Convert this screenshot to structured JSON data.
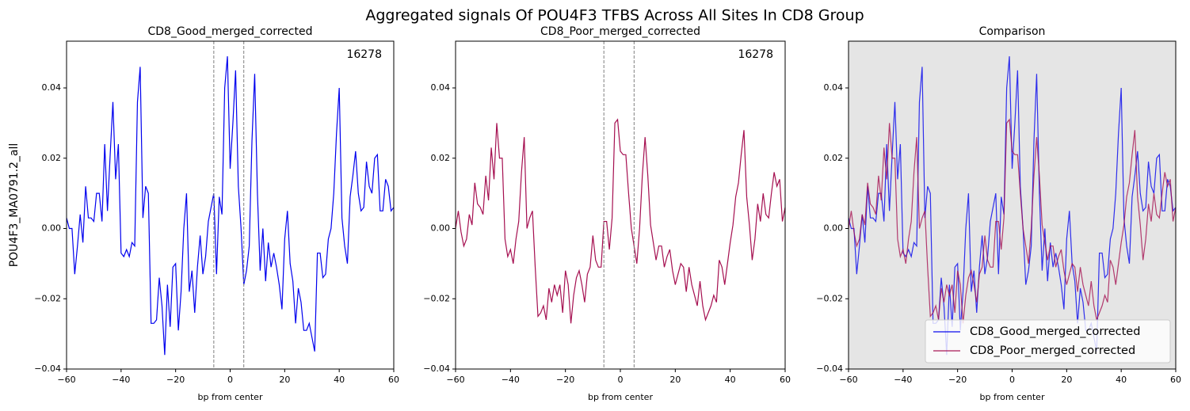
{
  "title": "Aggregated signals Of POU4F3 TFBS Across All Sites In CD8 Group",
  "chart_data": [
    {
      "type": "line",
      "title": "CD8_Good_merged_corrected",
      "xlabel": "bp from center",
      "ylabel": "POU4F3_MA0791.2_all",
      "annotation": "16278",
      "background": "#ffffff",
      "vlines": [
        -6,
        5
      ],
      "xlim": [
        -60,
        60
      ],
      "xticks": [
        {
          "value": -60,
          "label": "−60"
        },
        {
          "value": -40,
          "label": "−40"
        },
        {
          "value": -20,
          "label": "−20"
        },
        0,
        20,
        40,
        60
      ],
      "ylim": [
        -0.04,
        0.0533
      ],
      "yticks": [
        {
          "value": -0.04,
          "label": "−0.04"
        },
        {
          "value": -0.02,
          "label": "−0.02"
        },
        {
          "value": 0,
          "label": "0.00"
        },
        {
          "value": 0.02,
          "label": "0.02"
        },
        {
          "value": 0.04,
          "label": "0.04"
        }
      ],
      "x": [
        -60,
        -59,
        -58,
        -57,
        -56,
        -55,
        -54,
        -53,
        -52,
        -51,
        -50,
        -49,
        -48,
        -47,
        -46,
        -45,
        -44,
        -43,
        -42,
        -41,
        -40,
        -39,
        -38,
        -37,
        -36,
        -35,
        -34,
        -33,
        -32,
        -31,
        -30,
        -29,
        -28,
        -27,
        -26,
        -25,
        -24,
        -23,
        -22,
        -21,
        -20,
        -19,
        -18,
        -17,
        -16,
        -15,
        -14,
        -13,
        -12,
        -11,
        -10,
        -9,
        -8,
        -7,
        -6,
        -5,
        -4,
        -3,
        -2,
        -1,
        0,
        1,
        2,
        3,
        4,
        5,
        6,
        7,
        8,
        9,
        10,
        11,
        12,
        13,
        14,
        15,
        16,
        17,
        18,
        19,
        20,
        21,
        22,
        23,
        24,
        25,
        26,
        27,
        28,
        29,
        30,
        31,
        32,
        33,
        34,
        35,
        36,
        37,
        38,
        39,
        40,
        41,
        42,
        43,
        44,
        45,
        46,
        47,
        48,
        49,
        50,
        51,
        52,
        53,
        54,
        55,
        56,
        57,
        58,
        59,
        60
      ],
      "series": [
        {
          "color": "#0000ee",
          "opacity": 1,
          "values": [
            0.003,
            0.0,
            0.0,
            -0.013,
            -0.005,
            0.004,
            -0.004,
            0.012,
            0.003,
            0.003,
            0.002,
            0.01,
            0.01,
            0.002,
            0.024,
            0.005,
            0.021,
            0.036,
            0.014,
            0.024,
            -0.007,
            -0.008,
            -0.006,
            -0.008,
            -0.004,
            -0.005,
            0.036,
            0.046,
            0.003,
            0.012,
            0.01,
            -0.027,
            -0.027,
            -0.026,
            -0.014,
            -0.022,
            -0.036,
            -0.016,
            -0.028,
            -0.011,
            -0.01,
            -0.029,
            -0.018,
            0.0,
            0.01,
            -0.018,
            -0.012,
            -0.024,
            -0.011,
            -0.002,
            -0.013,
            -0.008,
            0.002,
            0.006,
            0.01,
            -0.013,
            0.009,
            0.004,
            0.04,
            0.049,
            0.017,
            0.03,
            0.045,
            0.012,
            0.0,
            -0.016,
            -0.012,
            -0.005,
            0.025,
            0.044,
            0.01,
            -0.012,
            0.0,
            -0.015,
            -0.004,
            -0.011,
            -0.007,
            -0.011,
            -0.016,
            -0.023,
            -0.003,
            0.005,
            -0.01,
            -0.015,
            -0.027,
            -0.017,
            -0.021,
            -0.029,
            -0.029,
            -0.027,
            -0.031,
            -0.035,
            -0.007,
            -0.007,
            -0.014,
            -0.013,
            -0.003,
            0.0,
            0.01,
            0.027,
            0.04,
            0.003,
            -0.005,
            -0.01,
            0.009,
            0.015,
            0.022,
            0.01,
            0.005,
            0.006,
            0.019,
            0.012,
            0.01,
            0.02,
            0.021,
            0.005,
            0.005,
            0.014,
            0.012,
            0.005,
            0.006
          ]
        }
      ]
    },
    {
      "type": "line",
      "title": "CD8_Poor_merged_corrected",
      "xlabel": "bp from center",
      "annotation": "16278",
      "background": "#ffffff",
      "vlines": [
        -6,
        5
      ],
      "xlim": [
        -60,
        60
      ],
      "xticks": [
        {
          "value": -60,
          "label": "−60"
        },
        {
          "value": -40,
          "label": "−40"
        },
        {
          "value": -20,
          "label": "−20"
        },
        0,
        20,
        40,
        60
      ],
      "ylim": [
        -0.04,
        0.0533
      ],
      "yticks": [
        {
          "value": -0.04,
          "label": "−0.04"
        },
        {
          "value": -0.02,
          "label": "−0.02"
        },
        {
          "value": 0,
          "label": "0.00"
        },
        {
          "value": 0.02,
          "label": "0.02"
        },
        {
          "value": 0.04,
          "label": "0.04"
        }
      ],
      "x": [
        -60,
        -59,
        -58,
        -57,
        -56,
        -55,
        -54,
        -53,
        -52,
        -51,
        -50,
        -49,
        -48,
        -47,
        -46,
        -45,
        -44,
        -43,
        -42,
        -41,
        -40,
        -39,
        -38,
        -37,
        -36,
        -35,
        -34,
        -33,
        -32,
        -31,
        -30,
        -29,
        -28,
        -27,
        -26,
        -25,
        -24,
        -23,
        -22,
        -21,
        -20,
        -19,
        -18,
        -17,
        -16,
        -15,
        -14,
        -13,
        -12,
        -11,
        -10,
        -9,
        -8,
        -7,
        -6,
        -5,
        -4,
        -3,
        -2,
        -1,
        0,
        1,
        2,
        3,
        4,
        5,
        6,
        7,
        8,
        9,
        10,
        11,
        12,
        13,
        14,
        15,
        16,
        17,
        18,
        19,
        20,
        21,
        22,
        23,
        24,
        25,
        26,
        27,
        28,
        29,
        30,
        31,
        32,
        33,
        34,
        35,
        36,
        37,
        38,
        39,
        40,
        41,
        42,
        43,
        44,
        45,
        46,
        47,
        48,
        49,
        50,
        51,
        52,
        53,
        54,
        55,
        56,
        57,
        58,
        59,
        60
      ],
      "series": [
        {
          "color": "#a50f50",
          "opacity": 1,
          "values": [
            0.0,
            0.005,
            -0.001,
            -0.005,
            -0.003,
            0.004,
            0.001,
            0.013,
            0.007,
            0.006,
            0.004,
            0.015,
            0.008,
            0.023,
            0.014,
            0.03,
            0.02,
            0.02,
            -0.003,
            -0.008,
            -0.006,
            -0.01,
            -0.003,
            0.002,
            0.016,
            0.026,
            0.0,
            0.003,
            0.005,
            -0.011,
            -0.025,
            -0.024,
            -0.022,
            -0.026,
            -0.017,
            -0.021,
            -0.016,
            -0.019,
            -0.016,
            -0.024,
            -0.012,
            -0.016,
            -0.027,
            -0.019,
            -0.014,
            -0.012,
            -0.016,
            -0.021,
            -0.013,
            -0.011,
            -0.002,
            -0.009,
            -0.011,
            -0.011,
            0.002,
            0.002,
            -0.006,
            0.003,
            0.03,
            0.031,
            0.022,
            0.021,
            0.021,
            0.01,
            0.0,
            -0.005,
            -0.01,
            0.0,
            0.015,
            0.026,
            0.015,
            0.001,
            -0.004,
            -0.009,
            -0.005,
            -0.005,
            -0.011,
            -0.008,
            -0.006,
            -0.012,
            -0.016,
            -0.013,
            -0.01,
            -0.011,
            -0.018,
            -0.011,
            -0.016,
            -0.019,
            -0.022,
            -0.015,
            -0.022,
            -0.026,
            -0.024,
            -0.022,
            -0.019,
            -0.021,
            -0.009,
            -0.011,
            -0.016,
            -0.01,
            -0.004,
            0.001,
            0.009,
            0.013,
            0.021,
            0.028,
            0.009,
            0.001,
            -0.009,
            -0.003,
            0.007,
            0.002,
            0.01,
            0.004,
            0.003,
            0.01,
            0.016,
            0.012,
            0.014,
            0.002,
            0.006
          ]
        }
      ]
    },
    {
      "type": "line",
      "title": "Comparison",
      "xlabel": "bp from center",
      "background": "#e5e5e5",
      "legend": "lower right",
      "xlim": [
        -60,
        60
      ],
      "xticks": [
        {
          "value": -60,
          "label": "−60"
        },
        {
          "value": -40,
          "label": "−40"
        },
        {
          "value": -20,
          "label": "−20"
        },
        0,
        20,
        40,
        60
      ],
      "ylim": [
        -0.04,
        0.0533
      ],
      "yticks": [
        {
          "value": -0.04,
          "label": "−0.04"
        },
        {
          "value": -0.02,
          "label": "−0.02"
        },
        {
          "value": 0,
          "label": "0.00"
        },
        {
          "value": 0.02,
          "label": "0.02"
        },
        {
          "value": 0.04,
          "label": "0.04"
        }
      ],
      "x": [
        -60,
        -59,
        -58,
        -57,
        -56,
        -55,
        -54,
        -53,
        -52,
        -51,
        -50,
        -49,
        -48,
        -47,
        -46,
        -45,
        -44,
        -43,
        -42,
        -41,
        -40,
        -39,
        -38,
        -37,
        -36,
        -35,
        -34,
        -33,
        -32,
        -31,
        -30,
        -29,
        -28,
        -27,
        -26,
        -25,
        -24,
        -23,
        -22,
        -21,
        -20,
        -19,
        -18,
        -17,
        -16,
        -15,
        -14,
        -13,
        -12,
        -11,
        -10,
        -9,
        -8,
        -7,
        -6,
        -5,
        -4,
        -3,
        -2,
        -1,
        0,
        1,
        2,
        3,
        4,
        5,
        6,
        7,
        8,
        9,
        10,
        11,
        12,
        13,
        14,
        15,
        16,
        17,
        18,
        19,
        20,
        21,
        22,
        23,
        24,
        25,
        26,
        27,
        28,
        29,
        30,
        31,
        32,
        33,
        34,
        35,
        36,
        37,
        38,
        39,
        40,
        41,
        42,
        43,
        44,
        45,
        46,
        47,
        48,
        49,
        50,
        51,
        52,
        53,
        54,
        55,
        56,
        57,
        58,
        59,
        60
      ],
      "series": [
        {
          "name": "CD8_Good_merged_corrected",
          "color": "#0000ee",
          "opacity": 0.8,
          "values": [
            0.003,
            0.0,
            0.0,
            -0.013,
            -0.005,
            0.004,
            -0.004,
            0.012,
            0.003,
            0.003,
            0.002,
            0.01,
            0.01,
            0.002,
            0.024,
            0.005,
            0.021,
            0.036,
            0.014,
            0.024,
            -0.007,
            -0.008,
            -0.006,
            -0.008,
            -0.004,
            -0.005,
            0.036,
            0.046,
            0.003,
            0.012,
            0.01,
            -0.027,
            -0.027,
            -0.026,
            -0.014,
            -0.022,
            -0.036,
            -0.016,
            -0.028,
            -0.011,
            -0.01,
            -0.029,
            -0.018,
            0.0,
            0.01,
            -0.018,
            -0.012,
            -0.024,
            -0.011,
            -0.002,
            -0.013,
            -0.008,
            0.002,
            0.006,
            0.01,
            -0.013,
            0.009,
            0.004,
            0.04,
            0.049,
            0.017,
            0.03,
            0.045,
            0.012,
            0.0,
            -0.016,
            -0.012,
            -0.005,
            0.025,
            0.044,
            0.01,
            -0.012,
            0.0,
            -0.015,
            -0.004,
            -0.011,
            -0.007,
            -0.011,
            -0.016,
            -0.023,
            -0.003,
            0.005,
            -0.01,
            -0.015,
            -0.027,
            -0.017,
            -0.021,
            -0.029,
            -0.029,
            -0.027,
            -0.031,
            -0.035,
            -0.007,
            -0.007,
            -0.014,
            -0.013,
            -0.003,
            0.0,
            0.01,
            0.027,
            0.04,
            0.003,
            -0.005,
            -0.01,
            0.009,
            0.015,
            0.022,
            0.01,
            0.005,
            0.006,
            0.019,
            0.012,
            0.01,
            0.02,
            0.021,
            0.005,
            0.005,
            0.014,
            0.012,
            0.005,
            0.006
          ]
        },
        {
          "name": "CD8_Poor_merged_corrected",
          "color": "#a50f50",
          "opacity": 0.8,
          "values": [
            0.0,
            0.005,
            -0.001,
            -0.005,
            -0.003,
            0.004,
            0.001,
            0.013,
            0.007,
            0.006,
            0.004,
            0.015,
            0.008,
            0.023,
            0.014,
            0.03,
            0.02,
            0.02,
            -0.003,
            -0.008,
            -0.006,
            -0.01,
            -0.003,
            0.002,
            0.016,
            0.026,
            0.0,
            0.003,
            0.005,
            -0.011,
            -0.025,
            -0.024,
            -0.022,
            -0.026,
            -0.017,
            -0.021,
            -0.016,
            -0.019,
            -0.016,
            -0.024,
            -0.012,
            -0.016,
            -0.027,
            -0.019,
            -0.014,
            -0.012,
            -0.016,
            -0.021,
            -0.013,
            -0.011,
            -0.002,
            -0.009,
            -0.011,
            -0.011,
            0.002,
            0.002,
            -0.006,
            0.003,
            0.03,
            0.031,
            0.022,
            0.021,
            0.021,
            0.01,
            0.0,
            -0.005,
            -0.01,
            0.0,
            0.015,
            0.026,
            0.015,
            0.001,
            -0.004,
            -0.009,
            -0.005,
            -0.005,
            -0.011,
            -0.008,
            -0.006,
            -0.012,
            -0.016,
            -0.013,
            -0.01,
            -0.011,
            -0.018,
            -0.011,
            -0.016,
            -0.019,
            -0.022,
            -0.015,
            -0.022,
            -0.026,
            -0.024,
            -0.022,
            -0.019,
            -0.021,
            -0.009,
            -0.011,
            -0.016,
            -0.01,
            -0.004,
            0.001,
            0.009,
            0.013,
            0.021,
            0.028,
            0.009,
            0.001,
            -0.009,
            -0.003,
            0.007,
            0.002,
            0.01,
            0.004,
            0.003,
            0.01,
            0.016,
            0.012,
            0.014,
            0.002,
            0.006
          ]
        }
      ]
    }
  ]
}
